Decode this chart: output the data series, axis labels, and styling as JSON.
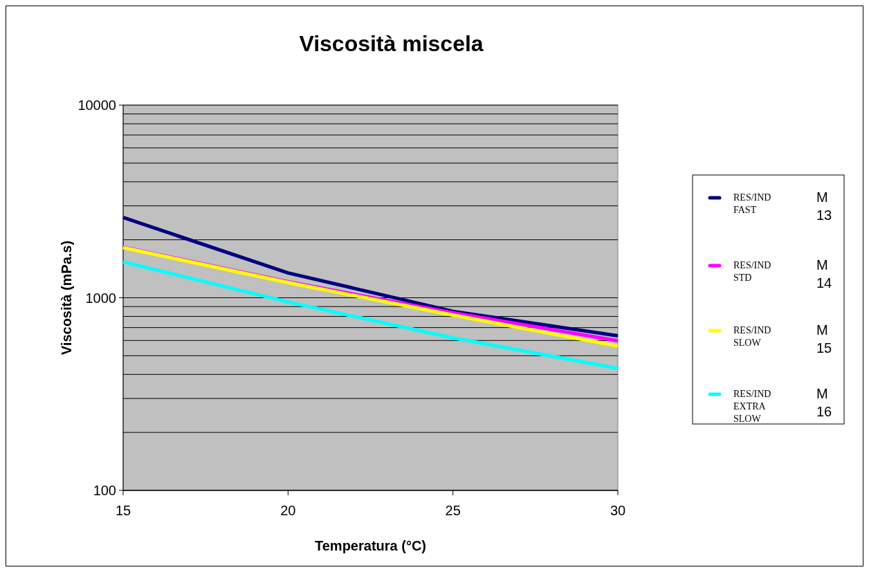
{
  "chart_data": {
    "type": "line",
    "title": "Viscosità miscela",
    "xlabel": "Temperatura (°C)",
    "ylabel": "Viscosità (mPa.s)",
    "x": [
      15,
      20,
      25,
      30
    ],
    "xlim": [
      15,
      30
    ],
    "xticks": [
      15,
      20,
      25,
      30
    ],
    "ylim": [
      100,
      10000
    ],
    "yticks": [
      100,
      1000,
      10000
    ],
    "log": "y",
    "grid": "y",
    "legend": "right",
    "marker": "none",
    "line_style": "solid",
    "series": [
      {
        "name": "RES/IND FAST",
        "color": "#000080",
        "values": [
          2610,
          1346,
          850,
          635
        ]
      },
      {
        "name": "RES/IND STD",
        "color": "#ff00ff",
        "values": [
          1830,
          1210,
          835,
          598
        ]
      },
      {
        "name": "RES/IND SLOW",
        "color": "#ffff00",
        "values": [
          1820,
          1200,
          813,
          561
        ]
      },
      {
        "name": "RES/IND EXTRA SLOW",
        "color": "#00ffff",
        "values": [
          1537,
          951,
          619,
          430
        ]
      }
    ],
    "annotations": [
      "M13",
      "M14",
      "M15",
      "M16"
    ]
  }
}
